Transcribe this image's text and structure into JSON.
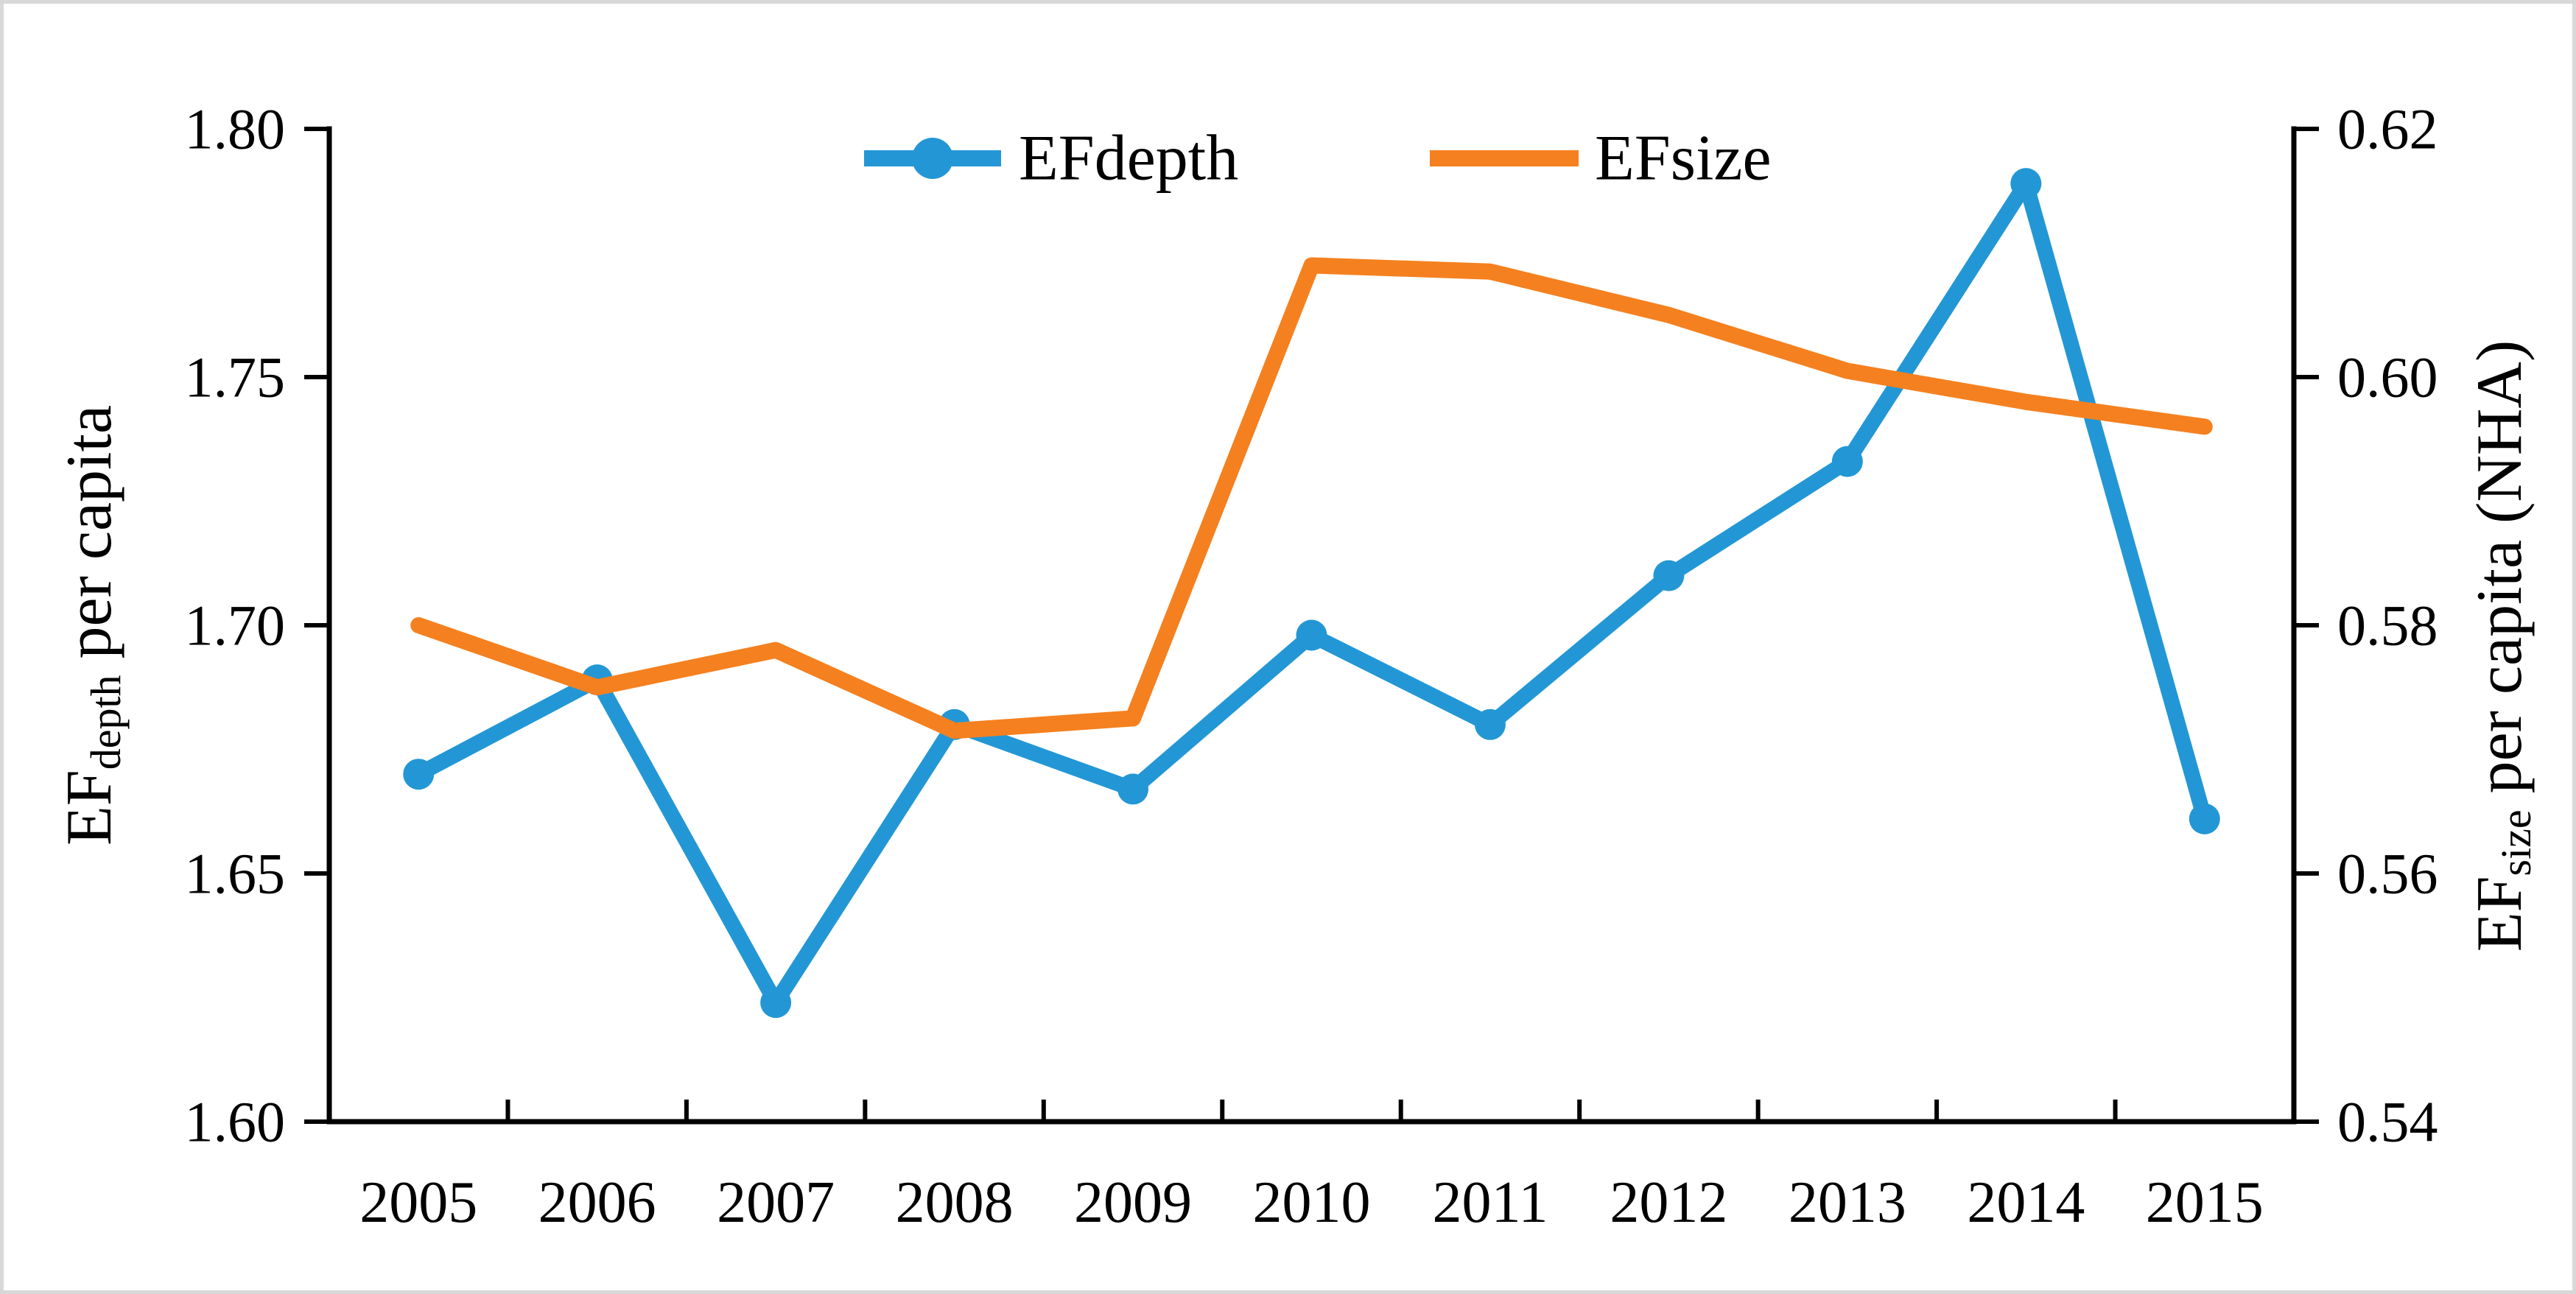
{
  "figure": {
    "kind": "dual-axis line chart",
    "background_color": "#FFFFFF",
    "border_color": "#D8D8D8"
  },
  "legend": {
    "position": "top",
    "items": [
      {
        "label": "EFdepth",
        "color": "#2397D5",
        "marker": "circle-on-line"
      },
      {
        "label": "EFsize",
        "color": "#F5801F",
        "marker": "line"
      }
    ]
  },
  "chart_data": {
    "type": "line",
    "x": [
      "2005",
      "2006",
      "2007",
      "2008",
      "2009",
      "2010",
      "2011",
      "2012",
      "2013",
      "2014",
      "2015"
    ],
    "series": [
      {
        "name": "EFdepth",
        "axis": "left",
        "color": "#2397D5",
        "marker": "circle",
        "values": [
          1.67,
          1.689,
          1.624,
          1.68,
          1.667,
          1.698,
          1.68,
          1.71,
          1.733,
          1.789,
          1.661
        ]
      },
      {
        "name": "EFsize",
        "axis": "right",
        "color": "#F5801F",
        "marker": "none",
        "values": [
          0.58,
          0.575,
          0.578,
          0.5715,
          0.5725,
          0.609,
          0.6085,
          0.605,
          0.6005,
          0.598,
          0.596
        ]
      }
    ],
    "left_axis": {
      "title_main": "EF",
      "title_sub": "depth",
      "title_rest": " per capita",
      "min": 1.6,
      "max": 1.8,
      "ticks": [
        {
          "value": 1.8,
          "label": "1.80"
        },
        {
          "value": 1.75,
          "label": "1.75"
        },
        {
          "value": 1.7,
          "label": "1.70"
        },
        {
          "value": 1.65,
          "label": "1.65"
        },
        {
          "value": 1.6,
          "label": "1.60"
        }
      ]
    },
    "right_axis": {
      "title_main": "EF",
      "title_sub": "size",
      "title_rest": " per capita (NHA)",
      "min": 0.54,
      "max": 0.62,
      "ticks": [
        {
          "value": 0.62,
          "label": "0.62"
        },
        {
          "value": 0.6,
          "label": "0.60"
        },
        {
          "value": 0.58,
          "label": "0.58"
        },
        {
          "value": 0.56,
          "label": "0.56"
        },
        {
          "value": 0.54,
          "label": "0.54"
        }
      ]
    },
    "grid": false,
    "legend_position": "top"
  }
}
